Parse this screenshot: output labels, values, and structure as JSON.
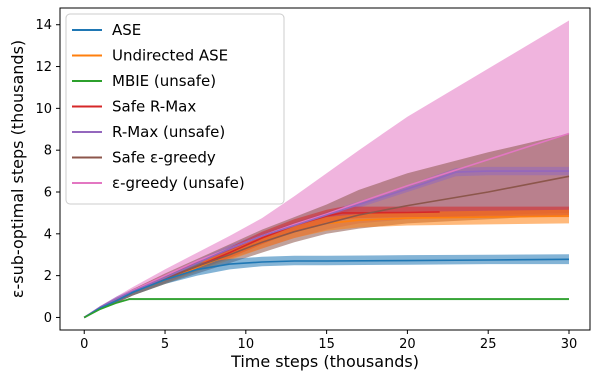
{
  "chart_data": {
    "type": "line",
    "xlabel": "Time steps (thousands)",
    "ylabel": "ε-sub-optimal steps (thousands)",
    "xlim": [
      -1.5,
      31.3
    ],
    "ylim": [
      -0.6,
      14.8
    ],
    "xticks": [
      "0",
      "5",
      "10",
      "15",
      "20",
      "25",
      "30"
    ],
    "yticks": [
      "0",
      "2",
      "4",
      "6",
      "8",
      "10",
      "12",
      "14"
    ],
    "grid": false,
    "legend_position": "top-left",
    "series": [
      {
        "name": "ASE",
        "color": "#1f77b4",
        "x": [
          0,
          1,
          2,
          3,
          5,
          7,
          9,
          11,
          13,
          15,
          20,
          25,
          30
        ],
        "y": [
          0,
          0.45,
          0.8,
          1.2,
          1.8,
          2.3,
          2.55,
          2.65,
          2.7,
          2.7,
          2.72,
          2.75,
          2.78
        ],
        "lower": [
          0,
          0.4,
          0.7,
          1.05,
          1.6,
          2.0,
          2.3,
          2.45,
          2.5,
          2.5,
          2.52,
          2.55,
          2.55
        ],
        "upper": [
          0,
          0.5,
          0.9,
          1.35,
          2.0,
          2.6,
          2.8,
          2.9,
          2.95,
          2.95,
          2.98,
          3.0,
          3.02
        ]
      },
      {
        "name": "Undirected ASE",
        "color": "#ff7f0e",
        "x": [
          0,
          1,
          2,
          3,
          5,
          7,
          9,
          11,
          13,
          15,
          17,
          20,
          25,
          30
        ],
        "y": [
          0,
          0.45,
          0.8,
          1.2,
          1.8,
          2.4,
          3.0,
          3.6,
          4.1,
          4.5,
          4.65,
          4.75,
          4.8,
          4.85
        ],
        "lower": [
          0,
          0.4,
          0.7,
          1.05,
          1.6,
          2.2,
          2.75,
          3.3,
          3.8,
          4.15,
          4.3,
          4.4,
          4.45,
          4.5
        ],
        "upper": [
          0,
          0.5,
          0.9,
          1.35,
          2.0,
          2.6,
          3.2,
          3.85,
          4.4,
          4.8,
          4.95,
          5.05,
          5.1,
          5.15
        ]
      },
      {
        "name": "MBIE (unsafe)",
        "color": "#2ca02c",
        "x": [
          0,
          1,
          2,
          2.8,
          5,
          10,
          15,
          20,
          25,
          30
        ],
        "y": [
          0,
          0.4,
          0.7,
          0.88,
          0.88,
          0.88,
          0.88,
          0.88,
          0.88,
          0.88
        ],
        "lower": [
          0,
          0.37,
          0.66,
          0.83,
          0.83,
          0.83,
          0.83,
          0.83,
          0.83,
          0.83
        ],
        "upper": [
          0,
          0.43,
          0.74,
          0.93,
          0.93,
          0.93,
          0.93,
          0.93,
          0.93,
          0.93
        ]
      },
      {
        "name": "Safe R-Max",
        "color": "#d62728",
        "x": [
          0,
          1,
          2,
          3,
          5,
          7,
          9,
          11,
          13,
          15,
          16,
          17,
          20,
          22
        ],
        "y": [
          0,
          0.45,
          0.8,
          1.2,
          1.85,
          2.45,
          3.1,
          3.8,
          4.4,
          4.85,
          5.0,
          5.0,
          5.02,
          5.05
        ],
        "lower": [
          0,
          0.4,
          0.7,
          1.05,
          1.65,
          2.25,
          2.85,
          3.5,
          4.1,
          4.55,
          4.7,
          4.75,
          4.8,
          4.8
        ],
        "upper": [
          0,
          0.5,
          0.9,
          1.35,
          2.05,
          2.65,
          3.35,
          4.1,
          4.7,
          5.15,
          5.3,
          5.3,
          5.3,
          5.3
        ],
        "band_x_max": 30
      },
      {
        "name": "R-Max (unsafe)",
        "color": "#9467bd",
        "x": [
          0,
          1,
          2,
          3,
          5,
          7,
          9,
          11,
          13,
          15,
          17,
          19,
          21,
          23,
          25,
          30
        ],
        "y": [
          0,
          0.5,
          0.9,
          1.25,
          1.9,
          2.6,
          3.3,
          3.9,
          4.4,
          4.9,
          5.4,
          5.9,
          6.4,
          6.95,
          7.0,
          7.0
        ],
        "lower": [
          0,
          0.45,
          0.8,
          1.15,
          1.75,
          2.45,
          3.15,
          3.75,
          4.25,
          4.75,
          5.25,
          5.75,
          6.25,
          6.75,
          6.8,
          6.8
        ],
        "upper": [
          0,
          0.55,
          1.0,
          1.35,
          2.05,
          2.75,
          3.45,
          4.05,
          4.55,
          5.05,
          5.55,
          6.05,
          6.6,
          7.15,
          7.2,
          7.2
        ]
      },
      {
        "name": "Safe ε-greedy",
        "color": "#8c564b",
        "x": [
          0,
          1,
          2,
          3,
          5,
          7,
          9,
          11,
          13,
          15,
          17,
          20,
          25,
          30
        ],
        "y": [
          0,
          0.45,
          0.8,
          1.2,
          1.85,
          2.45,
          3.0,
          3.6,
          4.1,
          4.5,
          4.9,
          5.35,
          6.0,
          6.75
        ],
        "lower": [
          0,
          0.4,
          0.7,
          1.05,
          1.6,
          2.1,
          2.6,
          3.1,
          3.6,
          4.0,
          4.25,
          4.5,
          4.7,
          4.9
        ],
        "upper": [
          0,
          0.5,
          0.9,
          1.35,
          2.1,
          2.8,
          3.5,
          4.2,
          4.8,
          5.4,
          6.1,
          6.9,
          7.9,
          8.8
        ]
      },
      {
        "name": "ε-greedy (unsafe)",
        "color": "#e377c2",
        "x": [
          0,
          1,
          2,
          3,
          5,
          7,
          9,
          11,
          13,
          15,
          17,
          20,
          25,
          30
        ],
        "y": [
          0,
          0.5,
          0.9,
          1.3,
          2.0,
          2.7,
          3.3,
          3.9,
          4.45,
          4.95,
          5.5,
          6.3,
          7.55,
          8.8
        ],
        "lower": [
          0,
          0.45,
          0.8,
          1.15,
          1.75,
          2.3,
          2.8,
          3.3,
          3.8,
          4.2,
          4.5,
          4.7,
          4.9,
          5.0
        ],
        "upper": [
          0,
          0.55,
          1.0,
          1.45,
          2.3,
          3.1,
          3.9,
          4.75,
          5.8,
          6.9,
          8.0,
          9.6,
          11.9,
          14.2
        ]
      }
    ],
    "band_draw_order": [
      "ε-greedy (unsafe)",
      "Safe ε-greedy",
      "R-Max (unsafe)",
      "Safe R-Max",
      "Undirected ASE",
      "ASE",
      "MBIE (unsafe)"
    ],
    "line_draw_order": [
      "Undirected ASE",
      "Safe R-Max",
      "Safe ε-greedy",
      "ε-greedy (unsafe)",
      "R-Max (unsafe)",
      "ASE",
      "MBIE (unsafe)"
    ]
  }
}
